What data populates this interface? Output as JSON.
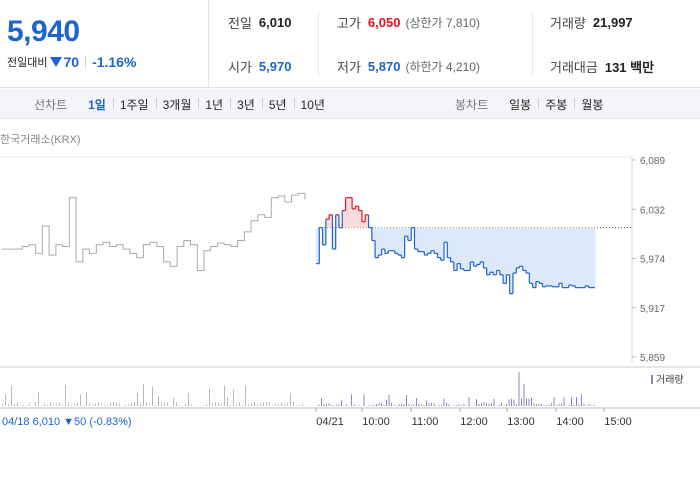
{
  "quote": {
    "price": "5,940",
    "change_label": "전일대비",
    "change_value": "70",
    "change_pct": "-1.16%",
    "prev_close_label": "전일",
    "prev_close": "6,010",
    "high_label": "고가",
    "high": "6,050",
    "upper_limit": "(상한가 7,810)",
    "volume_label": "거래량",
    "volume": "21,997",
    "open_label": "시가",
    "open": "5,970",
    "low_label": "저가",
    "low": "5,870",
    "lower_limit": "(하한가 4,210)",
    "amount_label": "거래대금",
    "amount": "131 백만"
  },
  "tabs": {
    "line_title": "선차트",
    "line_items": [
      "1일",
      "1주일",
      "3개월",
      "1년",
      "3년",
      "5년",
      "10년"
    ],
    "active_line": "1일",
    "candle_title": "봉차트",
    "candle_items": [
      "일봉",
      "주봉",
      "월봉"
    ]
  },
  "chart": {
    "source": "한국거래소(KRX)",
    "y_ticks": [
      "6,089",
      "6,032",
      "5,974",
      "5,917",
      "5,859"
    ],
    "x_ticks": [
      "04/21",
      "10:00",
      "11:00",
      "12:00",
      "13:00",
      "14:00",
      "15:00"
    ],
    "prev_day_info": "04/18  6,010 ▼50 (-0.83%)",
    "volume_legend": "거래량",
    "colors": {
      "up": "#e0151d",
      "down": "#1e64d0",
      "prev_day": "#aaaaaa",
      "up_fill": "#fbdcdc",
      "down_fill": "#dde8f8"
    }
  },
  "chart_data": {
    "type": "line",
    "title": "",
    "ylim": [
      5859,
      6089
    ],
    "prev_close": 6010,
    "series": [
      {
        "values": [
          5985,
          5985,
          5985,
          5988,
          5990,
          5980,
          6012,
          5978,
          5990,
          5988,
          6045,
          5970,
          5985,
          5980,
          5990,
          5993,
          5988,
          5990,
          5985,
          5980,
          5975,
          5990,
          5993,
          5988,
          5970,
          5965,
          5988,
          5995,
          5990,
          5960,
          5983,
          5988,
          5992,
          5990,
          5988,
          5995,
          6005,
          6018,
          6025,
          6022,
          6045,
          6047,
          6040,
          6048,
          6050,
          6043
        ]
      },
      {
        "values": [
          5968,
          6010,
          5990,
          6020,
          6025,
          5985,
          6025,
          6010,
          6030,
          6045,
          6045,
          6032,
          6035,
          6030,
          6017,
          6025,
          6010,
          5995,
          5975,
          5978,
          5985,
          5980,
          5983,
          5983,
          5980,
          5978,
          5975,
          6000,
          5995,
          6010,
          5985,
          5982,
          5982,
          5978,
          5980,
          5983,
          5980,
          5975,
          5972,
          5993,
          5975,
          5970,
          5960,
          5968,
          5962,
          5960,
          5960,
          5970,
          5965,
          5967,
          5970,
          5963,
          5955,
          5958,
          5955,
          5960,
          5955,
          5945,
          5955,
          5933,
          5957,
          5963,
          5965,
          5960,
          5957,
          5945,
          5940,
          5947,
          5945,
          5941,
          5942,
          5942,
          5941,
          5941,
          5945,
          5940,
          5940,
          5943,
          5942,
          5940,
          5940,
          5940,
          5942,
          5940,
          5940,
          5940
        ]
      }
    ]
  }
}
